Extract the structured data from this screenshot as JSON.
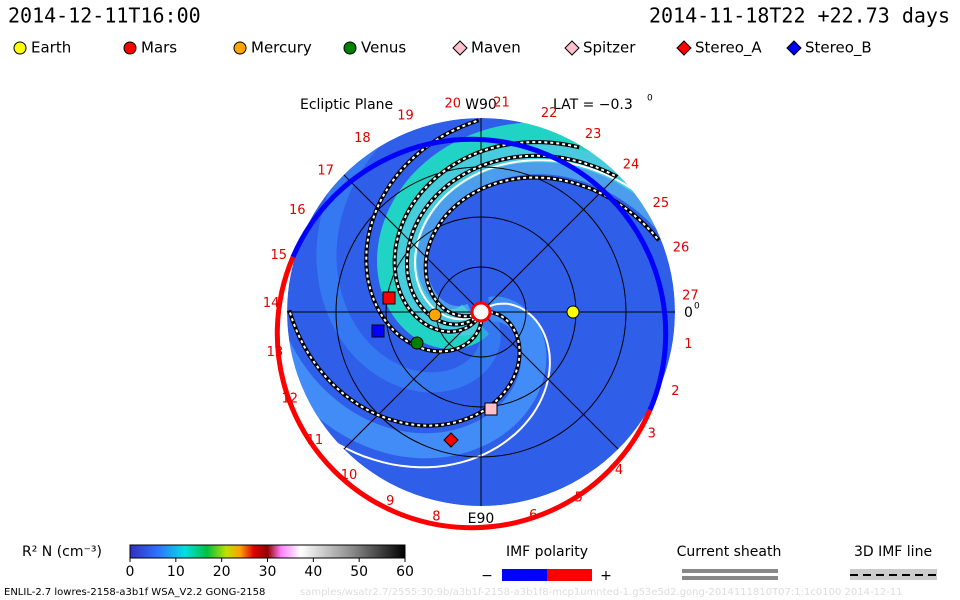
{
  "header": {
    "left": "2014-12-11T16:00",
    "right": "2014-11-18T22  +22.73 days"
  },
  "legend": [
    {
      "name": "Earth",
      "color": "#ffff00",
      "shape": "circle"
    },
    {
      "name": "Mars",
      "color": "#ff0000",
      "shape": "circle"
    },
    {
      "name": "Mercury",
      "color": "#ffa500",
      "shape": "circle"
    },
    {
      "name": "Venus",
      "color": "#008000",
      "shape": "circle"
    },
    {
      "name": "Maven",
      "color": "#ffc0cb",
      "shape": "diamond"
    },
    {
      "name": "Spitzer",
      "color": "#ffc0cb",
      "shape": "diamond"
    },
    {
      "name": "Stereo_A",
      "color": "#ff0000",
      "shape": "diamond"
    },
    {
      "name": "Stereo_B",
      "color": "#0000ff",
      "shape": "diamond"
    }
  ],
  "plot": {
    "title": "Ecliptic Plane",
    "top_label": "W90",
    "bottom_label": "E90",
    "lat_label": "LAT = −0.3",
    "lat_sup": "0",
    "zero_label": "0",
    "zero_sup": "0",
    "carrington": [
      "1",
      "2",
      "3",
      "4",
      "5",
      "6",
      "8",
      "9",
      "10",
      "11",
      "12",
      "13",
      "14",
      "15",
      "16",
      "17",
      "18",
      "19",
      "20",
      "21",
      "22",
      "23",
      "24",
      "25",
      "26",
      "27"
    ]
  },
  "colorbar": {
    "label": "R² N (cm⁻³)",
    "range": [
      0,
      60
    ],
    "ticks": [
      0,
      10,
      20,
      30,
      40,
      50,
      60
    ]
  },
  "imf": {
    "title": "IMF polarity",
    "minus": "−",
    "plus": "+"
  },
  "sheath": {
    "title": "Current sheath"
  },
  "imf_line": {
    "title": "3D IMF line"
  },
  "footer": {
    "left": "ENLIL-2.7 lowres-2158-a3b1f WSA_V2.2 GONG-2158",
    "faint": "samples/wsatr2.7/2555:30:9b/a3b1f-2158-a3b1f8-mcp1umnted-1.g53e5d2.gong-2014111810T07:1:1c0100    2014-12-11"
  }
}
